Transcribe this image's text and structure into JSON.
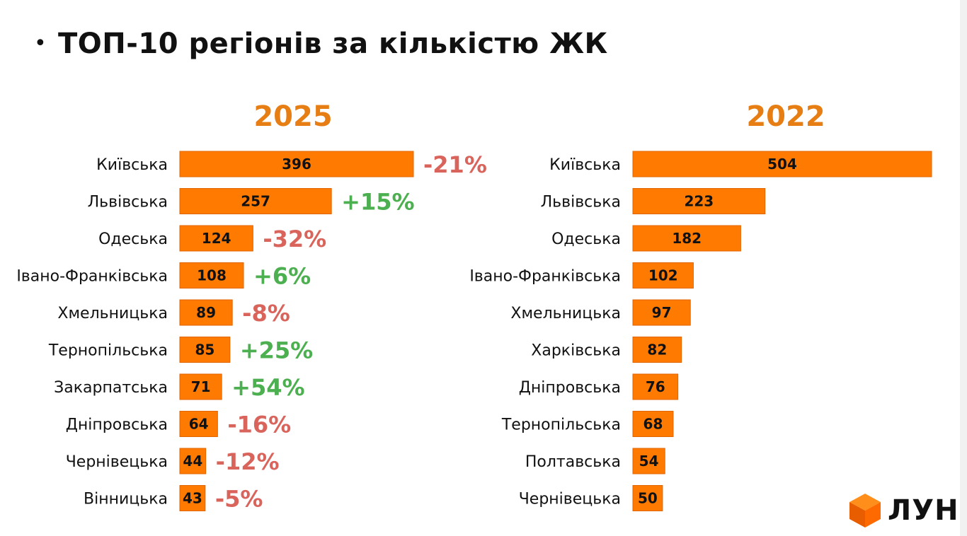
{
  "title": "ТОП-10 регіонів за кількістю ЖК",
  "bullet": "•",
  "logo": {
    "text": "ЛУН",
    "icon": "orange-cube-icon"
  },
  "colors": {
    "bar": "#ff7a00",
    "bar_edge": "#e06400",
    "year": "#e67e14",
    "positive": "#4caf50",
    "negative": "#d9645c"
  },
  "chart_data": [
    {
      "type": "bar",
      "orientation": "horizontal",
      "title": "2025",
      "categories": [
        "Київська",
        "Львівська",
        "Одеська",
        "Івано-Франківська",
        "Хмельницька",
        "Тернопільська",
        "Закарпатська",
        "Дніпровська",
        "Чернівецька",
        "Вінницька"
      ],
      "values": [
        396,
        257,
        124,
        108,
        89,
        85,
        71,
        64,
        44,
        43
      ],
      "value_labels": [
        "396",
        "257",
        "124",
        "108",
        "89",
        "85",
        "71",
        "64",
        "44",
        "43"
      ],
      "changes": [
        "-21%",
        "+15%",
        "-32%",
        "+6%",
        "-8%",
        "+25%",
        "+54%",
        "-16%",
        "-12%",
        "-5%"
      ],
      "xlim": [
        0,
        396
      ]
    },
    {
      "type": "bar",
      "orientation": "horizontal",
      "title": "2022",
      "categories": [
        "Київська",
        "Львівська",
        "Одеська",
        "Івано-Франківська",
        "Хмельницька",
        "Харківська",
        "Дніпровська",
        "Тернопільська",
        "Полтавська",
        "Чернівецька"
      ],
      "values": [
        504,
        223,
        182,
        102,
        97,
        82,
        76,
        68,
        54,
        50
      ],
      "value_labels": [
        "504",
        "223",
        "182",
        "102",
        "97",
        "82",
        "76",
        "68",
        "54",
        "50"
      ],
      "xlim": [
        0,
        504
      ]
    }
  ]
}
